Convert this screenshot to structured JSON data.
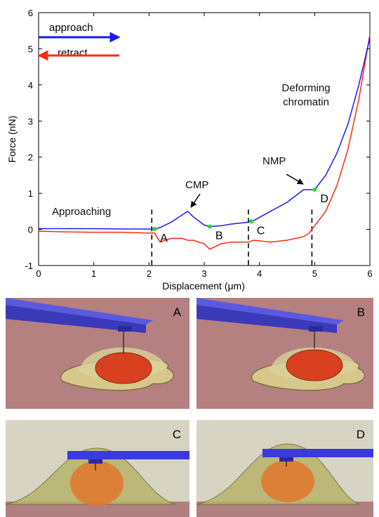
{
  "chart_data": {
    "type": "line",
    "x_label": "Displacement (μm)",
    "y_label": "Force (nN)",
    "x": [
      0,
      0.5,
      1,
      1.5,
      2,
      2.1,
      2.2,
      2.4,
      2.6,
      2.7,
      2.8,
      3.0,
      3.1,
      3.3,
      3.5,
      3.8,
      3.9,
      4.2,
      4.5,
      4.8,
      4.9,
      5.0,
      5.2,
      5.4,
      5.6,
      5.8,
      6.0
    ],
    "series": [
      {
        "name": "approach",
        "color": "#1a1aff",
        "values": [
          0.02,
          0.02,
          0.02,
          0.01,
          0.01,
          0.01,
          0.05,
          0.2,
          0.4,
          0.5,
          0.35,
          0.12,
          0.08,
          0.1,
          0.15,
          0.2,
          0.25,
          0.5,
          0.75,
          1.1,
          1.1,
          1.1,
          1.5,
          2.1,
          2.9,
          4.0,
          5.3
        ]
      },
      {
        "name": "retract",
        "color": "#ff2a10",
        "values": [
          -0.05,
          -0.07,
          -0.08,
          -0.08,
          -0.1,
          -0.1,
          -0.35,
          -0.25,
          -0.25,
          -0.3,
          -0.3,
          -0.4,
          -0.55,
          -0.4,
          -0.35,
          -0.35,
          -0.3,
          -0.35,
          -0.3,
          -0.2,
          -0.1,
          0.1,
          0.5,
          1.2,
          2.2,
          3.6,
          5.4
        ]
      }
    ],
    "xlim": [
      0,
      6
    ],
    "xticks": [
      0,
      1,
      2,
      3,
      4,
      5,
      6
    ],
    "ylim": [
      -1,
      6
    ],
    "yticks": [
      -1,
      0,
      1,
      2,
      3,
      4,
      5,
      6
    ],
    "boundaries": [
      2.05,
      3.8,
      4.95
    ],
    "points": [
      {
        "label": "A",
        "x": 2.1,
        "y": 0.01
      },
      {
        "label": "B",
        "x": 3.1,
        "y": 0.08
      },
      {
        "label": "C",
        "x": 3.85,
        "y": 0.22
      },
      {
        "label": "D",
        "x": 5.0,
        "y": 1.1
      }
    ],
    "point_color": "#22dd22",
    "annotations": [
      "Approaching",
      "CMP",
      "NMP",
      "Deforming chromatin"
    ],
    "legend": "upper left"
  },
  "panels": [
    "A",
    "B",
    "C",
    "D"
  ]
}
